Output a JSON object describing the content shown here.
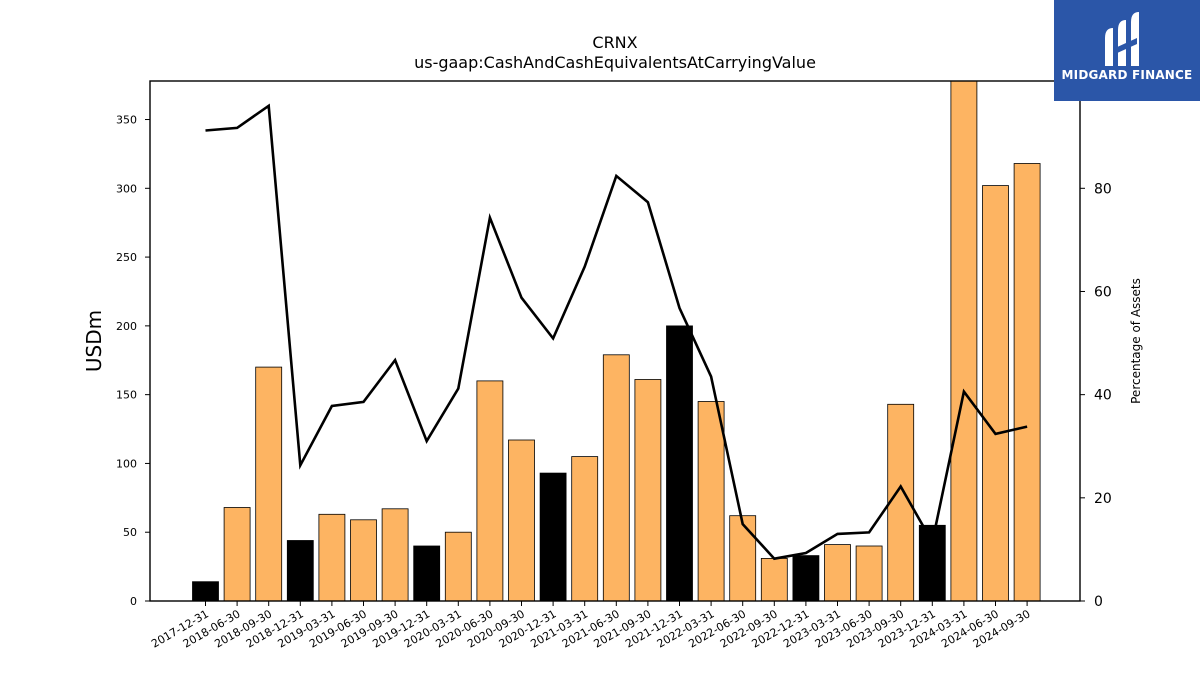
{
  "chart_data": {
    "type": "bar",
    "title": "CRNX",
    "subtitle": "us-gaap:CashAndCashEquivalentsAtCarryingValue",
    "ylabel": "USDm",
    "y2label": "Percentage of Assets",
    "ylim": [
      0,
      378
    ],
    "y2lim": [
      0,
      100.8
    ],
    "yticks": [
      0,
      50,
      100,
      150,
      200,
      250,
      300,
      350
    ],
    "y2ticks": [
      0,
      20,
      40,
      60,
      80
    ],
    "categories": [
      "2017-12-31",
      "2018-06-30",
      "2018-09-30",
      "2018-12-31",
      "2019-03-31",
      "2019-06-30",
      "2019-09-30",
      "2019-12-31",
      "2020-03-31",
      "2020-06-30",
      "2020-09-30",
      "2020-12-31",
      "2021-03-31",
      "2021-06-30",
      "2021-09-30",
      "2021-12-31",
      "2022-03-31",
      "2022-06-30",
      "2022-09-30",
      "2022-12-31",
      "2023-03-31",
      "2023-06-30",
      "2023-09-30",
      "2023-12-31",
      "2024-03-31",
      "2024-06-30",
      "2024-09-30"
    ],
    "bars": {
      "values": [
        14,
        68,
        170,
        44,
        63,
        59,
        67,
        40,
        50,
        160,
        117,
        93,
        105,
        179,
        161,
        200,
        145,
        62,
        31,
        33,
        41,
        40,
        143,
        55,
        378,
        302,
        318
      ],
      "fiscal_year_end": [
        true,
        false,
        false,
        true,
        false,
        false,
        false,
        true,
        false,
        false,
        false,
        true,
        false,
        false,
        false,
        true,
        false,
        false,
        false,
        true,
        false,
        false,
        false,
        true,
        false,
        false,
        false
      ],
      "quarter_color": "#fdb462",
      "year_end_color": "#000000"
    },
    "line": {
      "values": [
        91.2,
        91.7,
        96.0,
        26.3,
        37.8,
        38.6,
        46.7,
        31.0,
        41.2,
        74.3,
        58.8,
        50.9,
        64.8,
        82.4,
        77.3,
        56.8,
        43.5,
        14.9,
        8.2,
        9.3,
        13.0,
        13.3,
        22.2,
        11.4,
        40.6,
        32.4,
        33.8
      ],
      "color": "#000000"
    },
    "grid": false,
    "legend": "none"
  },
  "logo": {
    "text": "MIDGARD FINANCE"
  }
}
